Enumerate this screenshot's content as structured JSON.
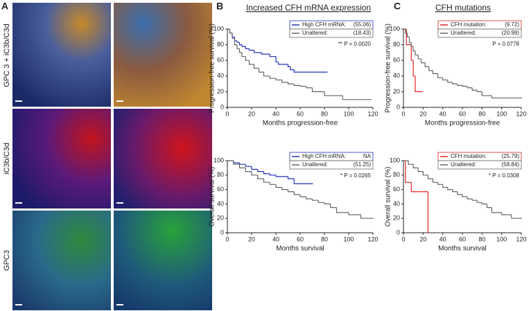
{
  "panel_labels": [
    "A",
    "B",
    "C"
  ],
  "image_row_labels": [
    "GPC 3 + iC3b/C3d",
    "iC3b/C3d",
    "GPC3"
  ],
  "column_titles": [
    "Increased CFH mRNA expression",
    "CFH mutations"
  ],
  "chart_data": [
    {
      "type": "step",
      "xlabel": "Months progression-free",
      "ylabel": "Progression-free survival (%)",
      "xlim": [
        0,
        120
      ],
      "xticks": [
        0,
        20,
        40,
        60,
        80,
        100,
        120
      ],
      "ylim": [
        0,
        100
      ],
      "yticks": [
        0,
        20,
        40,
        60,
        80,
        100
      ],
      "legend": "upper right",
      "annotation": "** P = 0.0020",
      "series": [
        {
          "name": "High CFH mRNA:",
          "median_label": "(55.06)",
          "color": "#1f2fbf",
          "x": [
            0,
            2,
            4,
            6,
            8,
            10,
            12,
            15,
            18,
            22,
            28,
            35,
            40,
            42,
            50,
            52,
            55,
            82
          ],
          "values": [
            100,
            95,
            90,
            85,
            83,
            80,
            78,
            75,
            73,
            70,
            68,
            65,
            58,
            55,
            52,
            48,
            45,
            45
          ]
        },
        {
          "name": "Unaltered:",
          "median_label": "(18.43)",
          "color": "#666666",
          "x": [
            0,
            2,
            4,
            6,
            8,
            10,
            12,
            15,
            18,
            22,
            26,
            30,
            35,
            40,
            45,
            50,
            55,
            60,
            65,
            70,
            80,
            95,
            118
          ],
          "values": [
            100,
            95,
            88,
            80,
            75,
            70,
            65,
            60,
            55,
            50,
            45,
            40,
            37,
            35,
            32,
            30,
            28,
            27,
            25,
            20,
            15,
            10,
            10
          ]
        }
      ]
    },
    {
      "type": "step",
      "xlabel": "Months survival",
      "ylabel": "Overall survival (%)",
      "xlim": [
        0,
        120
      ],
      "xticks": [
        0,
        20,
        40,
        60,
        80,
        100,
        120
      ],
      "ylim": [
        0,
        100
      ],
      "yticks": [
        0,
        20,
        40,
        60,
        80,
        100
      ],
      "legend": "upper right",
      "annotation": "* P = 0.0265",
      "series": [
        {
          "name": "High CFH mRNA:",
          "median_label": "NA",
          "color": "#1f2fbf",
          "x": [
            0,
            5,
            10,
            15,
            20,
            25,
            30,
            35,
            40,
            50,
            55,
            70
          ],
          "values": [
            100,
            97,
            95,
            92,
            88,
            85,
            82,
            80,
            78,
            75,
            68,
            68
          ]
        },
        {
          "name": "Unaltered:",
          "median_label": "(51.25)",
          "color": "#666666",
          "x": [
            0,
            5,
            10,
            15,
            20,
            25,
            30,
            35,
            40,
            45,
            50,
            55,
            60,
            65,
            70,
            75,
            80,
            85,
            90,
            100,
            110,
            120
          ],
          "values": [
            100,
            95,
            90,
            85,
            80,
            75,
            70,
            67,
            63,
            60,
            57,
            53,
            50,
            47,
            45,
            42,
            40,
            35,
            28,
            25,
            20,
            20
          ]
        }
      ]
    },
    {
      "type": "step",
      "xlabel": "Months progression-free",
      "ylabel": "Progression-free survival (%)",
      "xlim": [
        0,
        120
      ],
      "xticks": [
        0,
        20,
        40,
        60,
        80,
        100,
        120
      ],
      "ylim": [
        0,
        100
      ],
      "yticks": [
        0,
        20,
        40,
        60,
        80,
        100
      ],
      "legend": "upper right",
      "annotation": "P = 0.0778",
      "series": [
        {
          "name": "CFH mutation:",
          "median_label": "(9.72)",
          "color": "#e02020",
          "x": [
            0,
            3,
            8,
            10,
            12,
            19
          ],
          "values": [
            100,
            80,
            60,
            40,
            20,
            20
          ]
        },
        {
          "name": "Unaltered:",
          "median_label": "(20.99)",
          "color": "#666666",
          "x": [
            0,
            2,
            4,
            6,
            8,
            10,
            12,
            15,
            18,
            22,
            26,
            30,
            35,
            40,
            45,
            50,
            55,
            60,
            65,
            70,
            75,
            80,
            90,
            120
          ],
          "values": [
            100,
            95,
            90,
            83,
            78,
            72,
            67,
            62,
            57,
            52,
            47,
            43,
            38,
            35,
            32,
            30,
            28,
            27,
            25,
            22,
            20,
            15,
            12,
            12
          ]
        }
      ]
    },
    {
      "type": "step",
      "xlabel": "Months survival",
      "ylabel": "Overall survival (%)",
      "xlim": [
        0,
        120
      ],
      "xticks": [
        0,
        20,
        40,
        60,
        80,
        100,
        120
      ],
      "ylim": [
        0,
        100
      ],
      "yticks": [
        0,
        20,
        40,
        60,
        80,
        100
      ],
      "legend": "upper right",
      "annotation": "* P = 0.0308",
      "series": [
        {
          "name": "CFH mutation:",
          "median_label": "(25.79)",
          "color": "#e02020",
          "x": [
            0,
            2,
            8,
            25
          ],
          "values": [
            100,
            70,
            57,
            0
          ]
        },
        {
          "name": "Unaltered:",
          "median_label": "(58.84)",
          "color": "#666666",
          "x": [
            0,
            5,
            10,
            15,
            20,
            25,
            30,
            35,
            40,
            45,
            50,
            55,
            60,
            65,
            70,
            75,
            80,
            85,
            90,
            100,
            110,
            120
          ],
          "values": [
            100,
            95,
            90,
            85,
            80,
            75,
            70,
            67,
            63,
            60,
            57,
            53,
            50,
            47,
            45,
            42,
            40,
            35,
            28,
            25,
            20,
            20
          ]
        }
      ]
    }
  ]
}
